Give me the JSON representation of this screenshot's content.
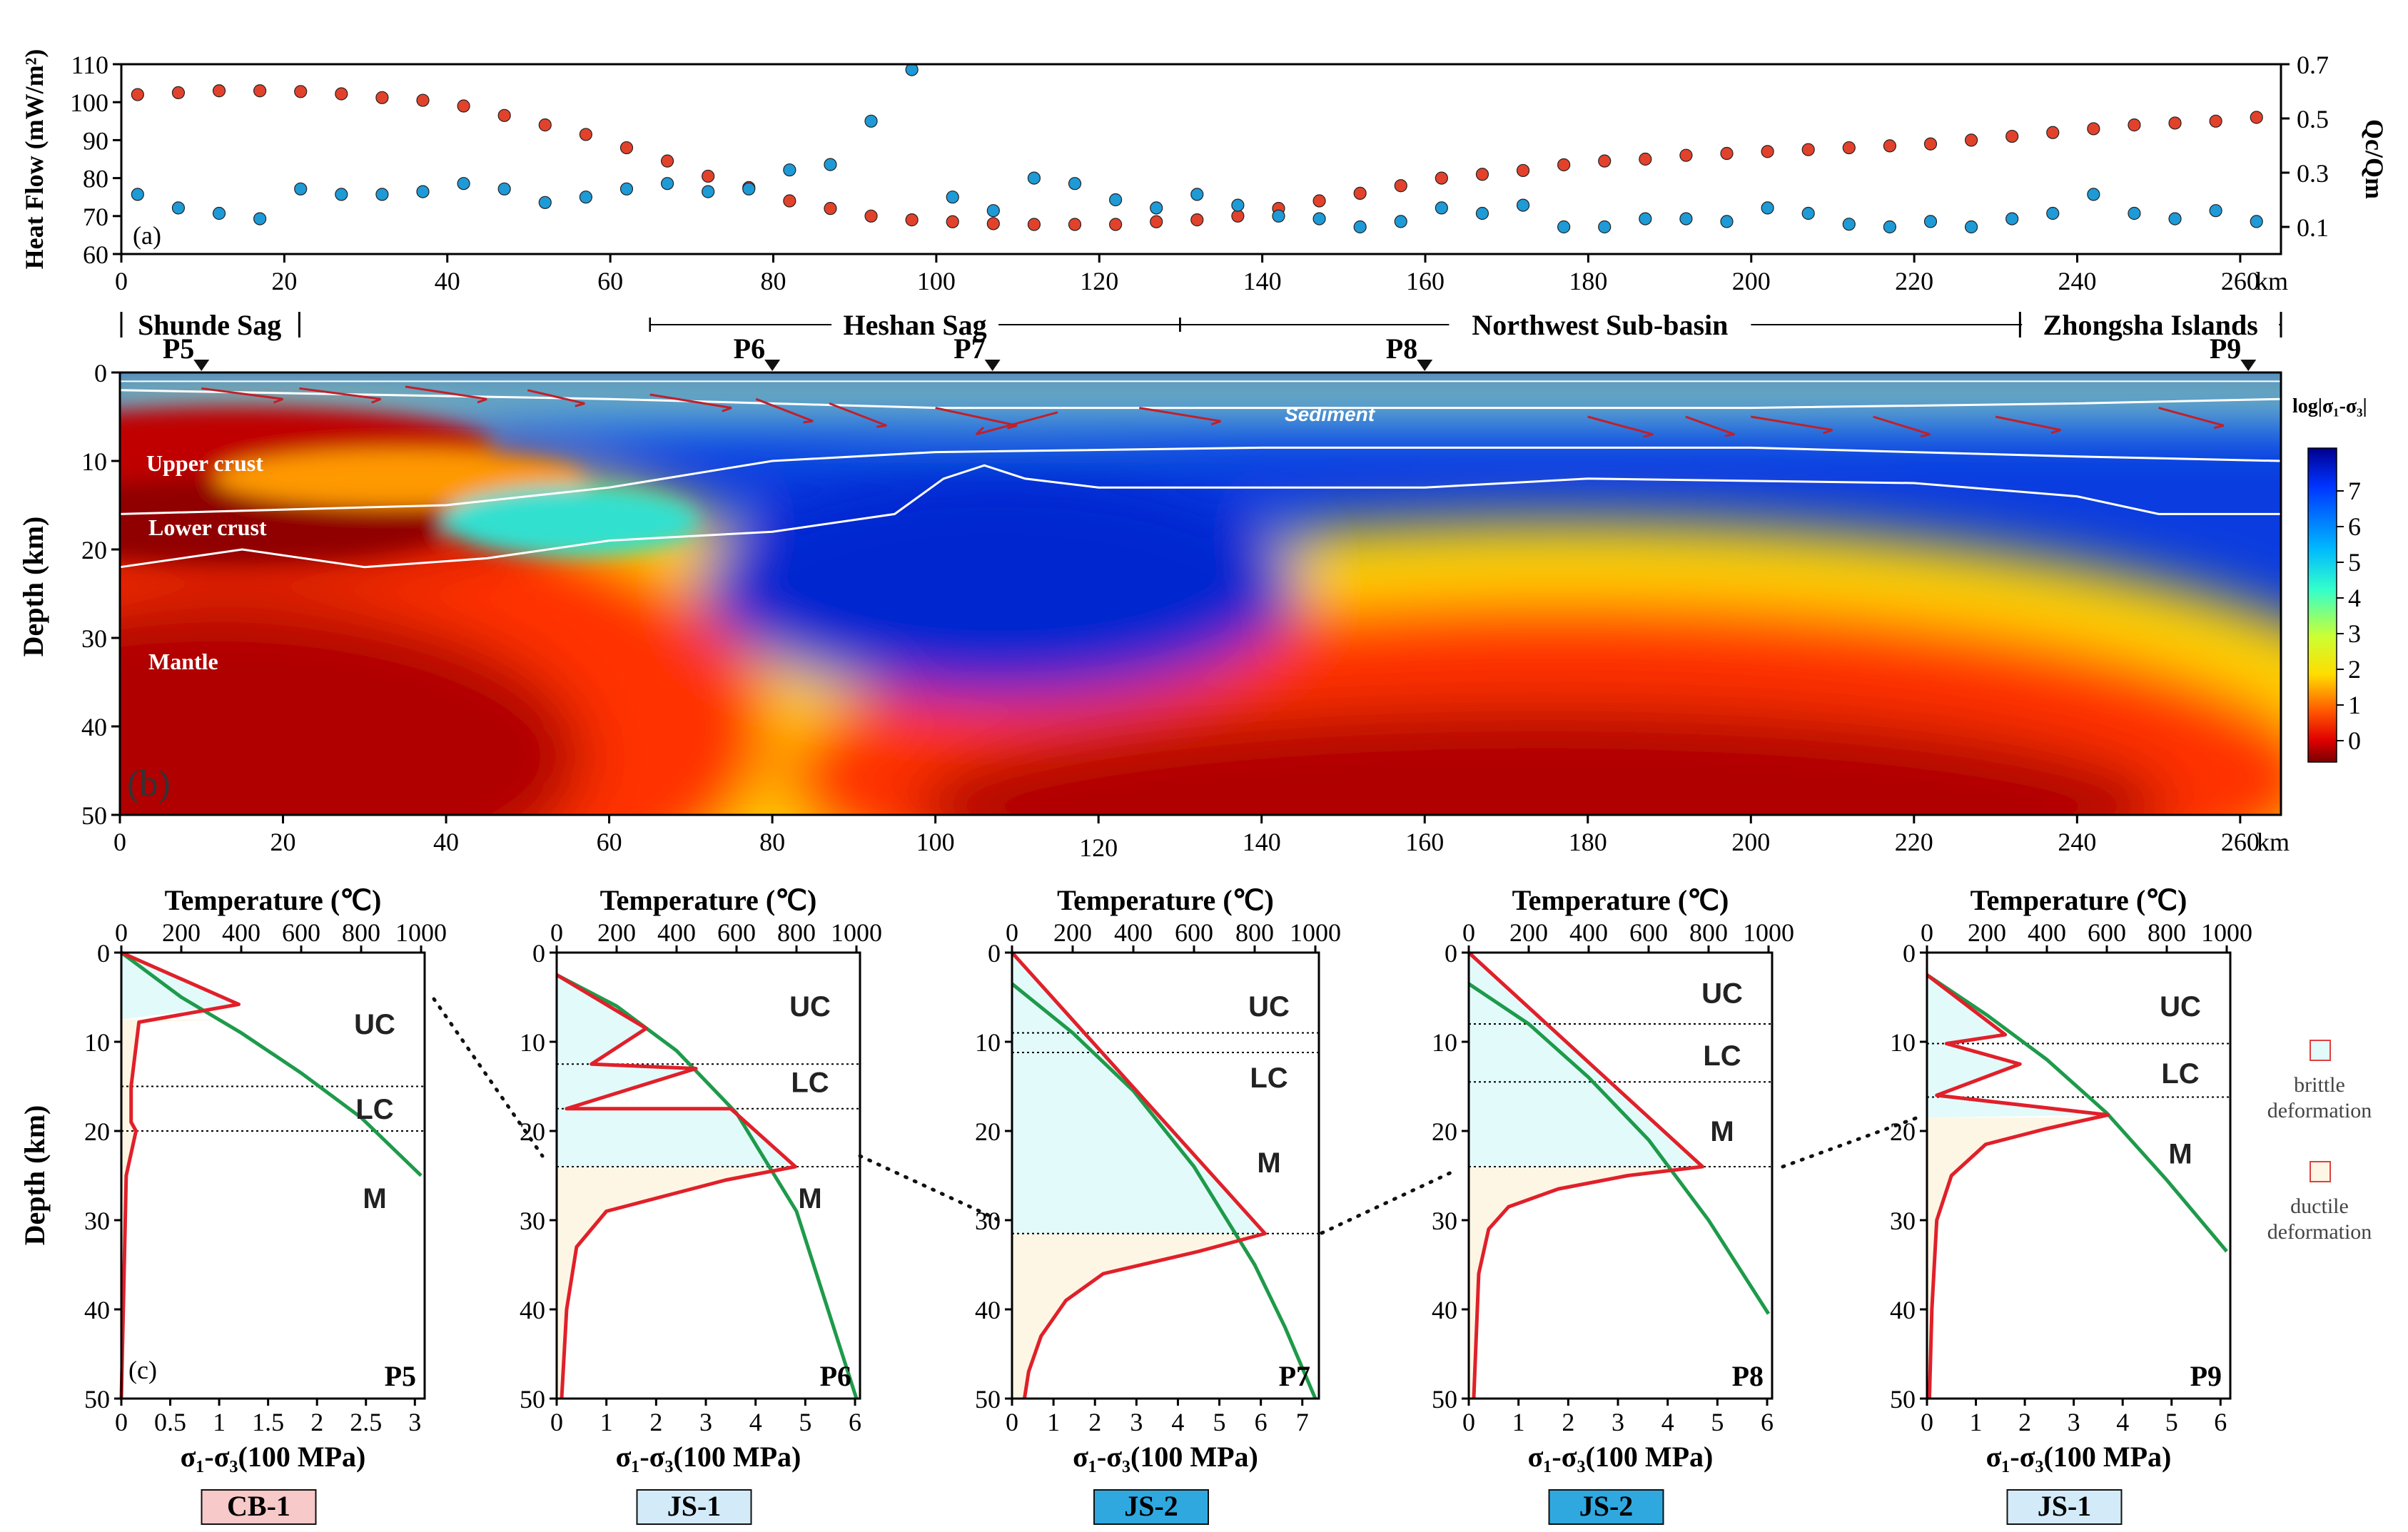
{
  "chart_data": [
    {
      "id": "a",
      "type": "scatter",
      "panel_label": "(a)",
      "xlabel": "",
      "x_unit": "km",
      "xlim": [
        0,
        265
      ],
      "xticks": [
        "0",
        "20",
        "40",
        "60",
        "80",
        "100",
        "120",
        "140",
        "160",
        "180",
        "200",
        "220",
        "240",
        "260"
      ],
      "y_left": {
        "label": "Heat Flow (mW/m²)",
        "lim": [
          60,
          110
        ],
        "ticks": [
          "60",
          "70",
          "80",
          "90",
          "100",
          "110"
        ],
        "color": "#e2422b"
      },
      "y_right": {
        "label": "Qc/Qm",
        "lim": [
          0.0,
          0.7
        ],
        "ticks": [
          "0.1",
          "0.3",
          "0.5",
          "0.7"
        ],
        "color": "#1e9ad6"
      },
      "series": [
        {
          "name": "Heat Flow",
          "axis": "left",
          "color": "#e2422b",
          "x": [
            2,
            7,
            12,
            17,
            22,
            27,
            32,
            37,
            42,
            47,
            52,
            57,
            62,
            67,
            72,
            77,
            82,
            87,
            92,
            97,
            102,
            107,
            112,
            117,
            122,
            127,
            132,
            137,
            142,
            147,
            152,
            157,
            162,
            167,
            172,
            177,
            182,
            187,
            192,
            197,
            202,
            207,
            212,
            217,
            222,
            227,
            232,
            237,
            242,
            247,
            252,
            257,
            262
          ],
          "y": [
            102,
            102.5,
            103,
            103,
            102.8,
            102.2,
            101.2,
            100.5,
            99,
            96.5,
            94,
            91.5,
            88,
            84.5,
            80.5,
            77.5,
            74,
            72,
            70,
            69,
            68.5,
            68,
            67.8,
            67.8,
            67.8,
            68.5,
            69,
            70,
            72,
            74,
            76,
            78,
            80,
            81,
            82,
            83.5,
            84.5,
            85,
            86,
            86.5,
            87,
            87.5,
            88,
            88.5,
            89,
            90,
            91,
            92,
            93,
            94,
            94.5,
            95,
            96
          ]
        },
        {
          "name": "Qc/Qm",
          "axis": "right",
          "color": "#1e9ad6",
          "x": [
            2,
            7,
            12,
            17,
            22,
            27,
            32,
            37,
            42,
            47,
            52,
            57,
            62,
            67,
            72,
            77,
            82,
            87,
            92,
            97,
            102,
            107,
            112,
            117,
            122,
            127,
            132,
            137,
            142,
            147,
            152,
            157,
            162,
            167,
            172,
            177,
            182,
            187,
            192,
            197,
            202,
            207,
            212,
            217,
            222,
            227,
            232,
            237,
            242,
            247,
            252,
            257,
            262
          ],
          "y": [
            0.22,
            0.17,
            0.15,
            0.13,
            0.24,
            0.22,
            0.22,
            0.23,
            0.26,
            0.24,
            0.19,
            0.21,
            0.24,
            0.26,
            0.23,
            0.24,
            0.31,
            0.33,
            0.49,
            0.68,
            0.21,
            0.16,
            0.28,
            0.26,
            0.2,
            0.17,
            0.22,
            0.18,
            0.14,
            0.13,
            0.1,
            0.12,
            0.17,
            0.15,
            0.18,
            0.1,
            0.1,
            0.13,
            0.13,
            0.12,
            0.17,
            0.15,
            0.11,
            0.1,
            0.12,
            0.1,
            0.13,
            0.15,
            0.22,
            0.15,
            0.13,
            0.16,
            0.12
          ]
        }
      ]
    },
    {
      "id": "b",
      "type": "heatmap",
      "panel_label": "(b)",
      "ylabel": "Depth (km)",
      "x_unit": "km",
      "xlim": [
        0,
        265
      ],
      "ylim": [
        0,
        50
      ],
      "xticks": [
        "0",
        "20",
        "40",
        "60",
        "80",
        "100",
        "120",
        "140",
        "160",
        "180",
        "200",
        "220",
        "240",
        "260"
      ],
      "yticks": [
        "0",
        "10",
        "20",
        "30",
        "40",
        "50"
      ],
      "colorbar": {
        "title": "log|σ₁-σ₃|",
        "ticks": [
          "7",
          "6",
          "5",
          "4",
          "3",
          "2",
          "1",
          "0"
        ]
      },
      "regions": [
        {
          "name": "Shunde Sag",
          "from_km": 0,
          "to_km": 22
        },
        {
          "name": "Heshan Sag",
          "from_km": 65,
          "to_km": 130
        },
        {
          "name": "Northwest Sub-basin",
          "from_km": 130,
          "to_km": 233
        },
        {
          "name": "Zhongsha Islands",
          "from_km": 233,
          "to_km": 265
        }
      ],
      "profiles": [
        {
          "name": "P5",
          "x_km": 10
        },
        {
          "name": "P6",
          "x_km": 80
        },
        {
          "name": "P7",
          "x_km": 107
        },
        {
          "name": "P8",
          "x_km": 160
        },
        {
          "name": "P9",
          "x_km": 261
        }
      ],
      "layer_labels": [
        "Sediment",
        "Upper crust",
        "Lower crust",
        "Mantle"
      ],
      "boundaries": {
        "sediment_base": [
          [
            0,
            2
          ],
          [
            30,
            2.5
          ],
          [
            60,
            3
          ],
          [
            80,
            3.5
          ],
          [
            100,
            4
          ],
          [
            140,
            4
          ],
          [
            200,
            4
          ],
          [
            240,
            3.5
          ],
          [
            265,
            3
          ]
        ],
        "upper_crust_base": [
          [
            0,
            16
          ],
          [
            40,
            15
          ],
          [
            60,
            13
          ],
          [
            80,
            10
          ],
          [
            100,
            9
          ],
          [
            140,
            8.5
          ],
          [
            200,
            8.5
          ],
          [
            240,
            9.5
          ],
          [
            265,
            10
          ]
        ],
        "moho": [
          [
            0,
            22
          ],
          [
            15,
            20
          ],
          [
            30,
            22
          ],
          [
            45,
            21
          ],
          [
            60,
            19
          ],
          [
            80,
            18
          ],
          [
            95,
            16
          ],
          [
            101,
            12
          ],
          [
            106,
            10.5
          ],
          [
            111,
            12
          ],
          [
            120,
            13
          ],
          [
            160,
            13
          ],
          [
            180,
            12
          ],
          [
            220,
            12.5
          ],
          [
            240,
            14
          ],
          [
            250,
            16
          ],
          [
            265,
            16
          ]
        ]
      }
    },
    {
      "id": "c",
      "type": "line",
      "panel_label": "(c)",
      "ylabel": "Depth (km)",
      "top_axis": {
        "label": "Temperature (℃)",
        "lim": [
          0,
          1000
        ],
        "ticks": [
          "0",
          "200",
          "400",
          "600",
          "800",
          "1000"
        ]
      },
      "bottom_axis_label": "σ₁-σ₃(100 MPa)",
      "ylim": [
        0,
        50
      ],
      "yticks": [
        "0",
        "10",
        "20",
        "30",
        "40",
        "50"
      ],
      "legend": [
        {
          "label": "brittle deformation",
          "color": "#e3fafb"
        },
        {
          "label": "ductile deformation",
          "color": "#fdf6e4"
        }
      ],
      "profiles": [
        {
          "name": "P5",
          "model": "CB-1",
          "model_bg": "#f7c9c9",
          "model_color": "#e01f1f",
          "xmax": 3.1,
          "xticks": [
            "0",
            "0.5",
            "1",
            "1.5",
            "2",
            "2.5",
            "3"
          ],
          "xtick_vals": [
            0,
            0.5,
            1,
            1.5,
            2,
            2.5,
            3
          ],
          "layers": [
            {
              "label": "UC",
              "depth": 8
            },
            {
              "label": "LC",
              "depth": 17.5
            },
            {
              "label": "M",
              "depth": 27.5
            }
          ],
          "boundaries_km": [
            15,
            20
          ],
          "brittle_bottom_km": 7.5,
          "ductile_bottom_km": 7.5,
          "strength": [
            [
              0,
              0
            ],
            [
              1.2,
              5.8
            ],
            [
              0.18,
              7.8
            ],
            [
              0.1,
              15
            ],
            [
              0.1,
              19
            ],
            [
              0.15,
              20
            ],
            [
              0.05,
              25
            ],
            [
              0,
              50
            ]
          ],
          "temperature": [
            [
              0,
              0
            ],
            [
              200,
              5
            ],
            [
              400,
              9
            ],
            [
              600,
              13.5
            ],
            [
              800,
              18.5
            ],
            [
              1000,
              25
            ]
          ]
        },
        {
          "name": "P6",
          "model": "JS-1",
          "model_bg": "#d3ebf8",
          "model_color": "#1b3b8c",
          "xmax": 6.1,
          "xticks": [
            "0",
            "1",
            "2",
            "3",
            "4",
            "5",
            "6"
          ],
          "xtick_vals": [
            0,
            1,
            2,
            3,
            4,
            5,
            6
          ],
          "layers": [
            {
              "label": "UC",
              "depth": 6
            },
            {
              "label": "LC",
              "depth": 14.5
            },
            {
              "label": "M",
              "depth": 27.5
            }
          ],
          "boundaries_km": [
            12.5,
            17.5
          ],
          "brittle_bottom_km": 24,
          "ductile_bottom_km": 50,
          "strength": [
            [
              0,
              2.5
            ],
            [
              1.8,
              8.5
            ],
            [
              0.7,
              12.5
            ],
            [
              2.8,
              13
            ],
            [
              0.2,
              17.5
            ],
            [
              3.5,
              17.5
            ],
            [
              4.8,
              24
            ],
            [
              3.4,
              25.5
            ],
            [
              1,
              29
            ],
            [
              0.4,
              33
            ],
            [
              0.2,
              40
            ],
            [
              0.1,
              50
            ]
          ],
          "temperature": [
            [
              0,
              2.5
            ],
            [
              200,
              6
            ],
            [
              400,
              11
            ],
            [
              600,
              18
            ],
            [
              800,
              29
            ],
            [
              1000,
              50
            ]
          ]
        },
        {
          "name": "P7",
          "model": "JS-2",
          "model_bg": "#2fa8e0",
          "model_color": "#0b2b66",
          "xmax": 7.4,
          "xticks": [
            "0",
            "1",
            "2",
            "3",
            "4",
            "5",
            "6",
            "7"
          ],
          "xtick_vals": [
            0,
            1,
            2,
            3,
            4,
            5,
            6,
            7
          ],
          "layers": [
            {
              "label": "UC",
              "depth": 6
            },
            {
              "label": "LC",
              "depth": 14
            },
            {
              "label": "M",
              "depth": 23.5
            }
          ],
          "boundaries_km": [
            9,
            11.2
          ],
          "brittle_bottom_km": 31.5,
          "ductile_bottom_km": 50,
          "strength": [
            [
              0,
              0
            ],
            [
              6.1,
              31.5
            ],
            [
              4.5,
              33.5
            ],
            [
              2.2,
              36
            ],
            [
              1.3,
              39
            ],
            [
              0.7,
              43
            ],
            [
              0.4,
              47
            ],
            [
              0.3,
              50
            ]
          ],
          "temperature": [
            [
              0,
              3.5
            ],
            [
              200,
              9
            ],
            [
              400,
              15.5
            ],
            [
              600,
              24
            ],
            [
              800,
              35
            ],
            [
              900,
              42
            ],
            [
              1000,
              50
            ]
          ]
        },
        {
          "name": "P8",
          "model": "JS-2",
          "model_bg": "#2fa8e0",
          "model_color": "#0b2b66",
          "xmax": 6.1,
          "xticks": [
            "0",
            "1",
            "2",
            "3",
            "4",
            "5",
            "6"
          ],
          "xtick_vals": [
            0,
            1,
            2,
            3,
            4,
            5,
            6
          ],
          "layers": [
            {
              "label": "UC",
              "depth": 4.5
            },
            {
              "label": "LC",
              "depth": 11.5
            },
            {
              "label": "M",
              "depth": 20
            }
          ],
          "boundaries_km": [
            8,
            14.5
          ],
          "brittle_bottom_km": 24,
          "ductile_bottom_km": 50,
          "strength": [
            [
              0,
              0
            ],
            [
              4.7,
              24
            ],
            [
              3.2,
              25
            ],
            [
              1.8,
              26.5
            ],
            [
              0.8,
              28.5
            ],
            [
              0.4,
              31
            ],
            [
              0.2,
              36
            ],
            [
              0.1,
              50
            ]
          ],
          "temperature": [
            [
              0,
              3.5
            ],
            [
              200,
              8
            ],
            [
              400,
              14
            ],
            [
              600,
              21
            ],
            [
              800,
              30
            ],
            [
              1000,
              40.5
            ]
          ]
        },
        {
          "name": "P9",
          "model": "JS-1",
          "model_bg": "#d3ebf8",
          "model_color": "#1b3b8c",
          "xmax": 6.2,
          "xticks": [
            "0",
            "1",
            "2",
            "3",
            "4",
            "5",
            "6"
          ],
          "xtick_vals": [
            0,
            1,
            2,
            3,
            4,
            5,
            6
          ],
          "layers": [
            {
              "label": "UC",
              "depth": 6
            },
            {
              "label": "LC",
              "depth": 13.5
            },
            {
              "label": "M",
              "depth": 22.5
            }
          ],
          "boundaries_km": [
            10.2,
            16.2
          ],
          "brittle_bottom_km": 18.5,
          "ductile_bottom_km": 50,
          "strength": [
            [
              0,
              2.5
            ],
            [
              1.6,
              9.2
            ],
            [
              0.4,
              10.2
            ],
            [
              1.9,
              12.5
            ],
            [
              0.2,
              16
            ],
            [
              3.7,
              18.2
            ],
            [
              2.4,
              19.8
            ],
            [
              1.2,
              21.5
            ],
            [
              0.5,
              25
            ],
            [
              0.2,
              30
            ],
            [
              0.1,
              40
            ],
            [
              0.05,
              50
            ]
          ],
          "temperature": [
            [
              0,
              2.5
            ],
            [
              200,
              7
            ],
            [
              400,
              12
            ],
            [
              600,
              18
            ],
            [
              800,
              25.5
            ],
            [
              1000,
              33.5
            ]
          ]
        }
      ]
    }
  ]
}
